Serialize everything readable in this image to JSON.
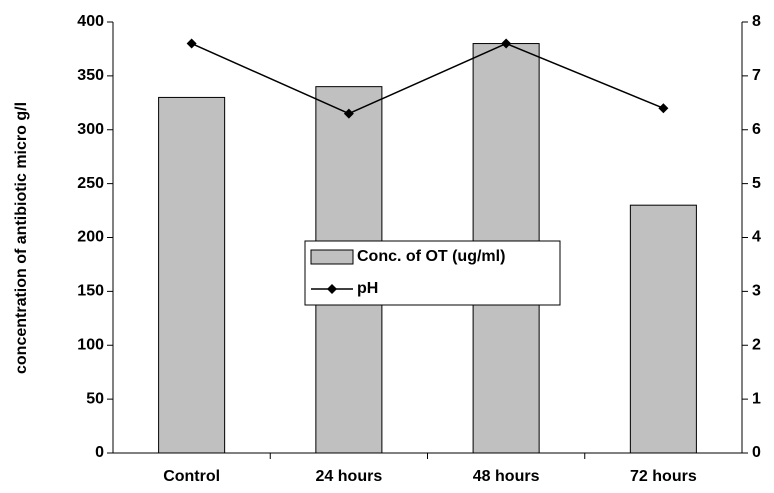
{
  "chart_data": {
    "type": "bar_line",
    "ylabel": "concentration of antibiotic micro g/l",
    "categories": [
      "Control",
      "24 hours",
      "48 hours",
      "72 hours"
    ],
    "series": [
      {
        "name": "Conc. of OT (ug/ml)",
        "color": "#c0c0c0",
        "type": "bar",
        "values": [
          330,
          340,
          380,
          230
        ]
      },
      {
        "name": "pH",
        "color": "#000000",
        "type": "line",
        "axis": "y2",
        "values": [
          7.6,
          6.3,
          7.6,
          6.4
        ]
      }
    ],
    "ylim": [
      0,
      400
    ],
    "yticks": [
      0,
      50,
      100,
      150,
      200,
      250,
      300,
      350,
      400
    ],
    "y2lim": [
      0,
      8
    ],
    "y2ticks": [
      0,
      1,
      2,
      3,
      4,
      5,
      6,
      7,
      8
    ],
    "grid": false
  }
}
